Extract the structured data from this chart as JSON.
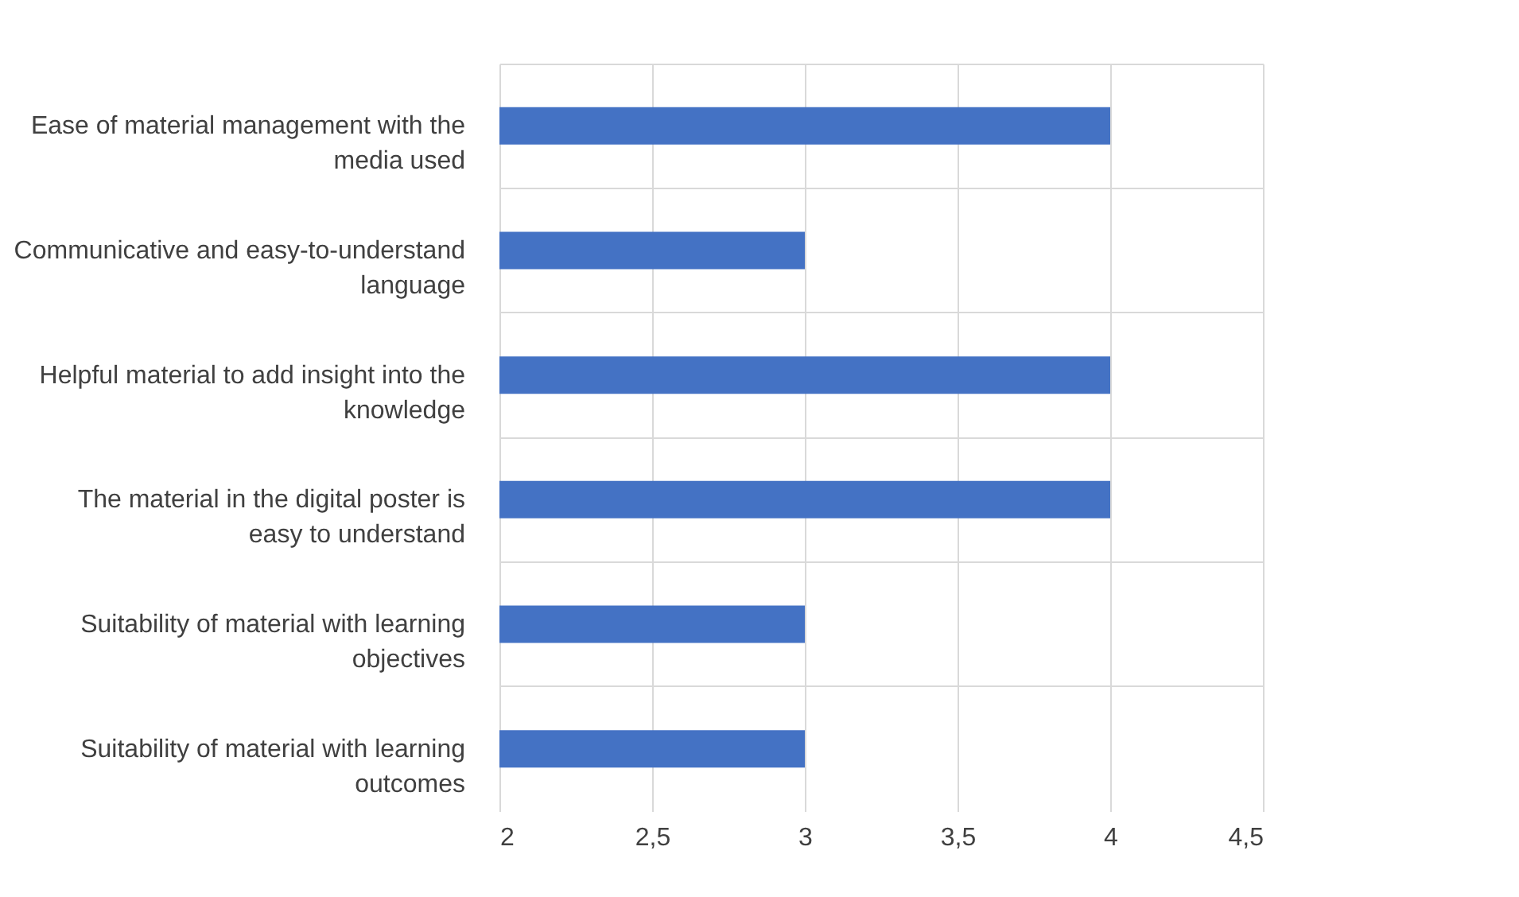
{
  "chart_data": {
    "type": "bar",
    "orientation": "horizontal",
    "categories": [
      "Ease of material management with the media used",
      "Communicative and easy-to-understand language",
      "Helpful material to add insight into the knowledge",
      "The material in the digital poster is easy to understand",
      "Suitability of material with learning objectives",
      "Suitability of material with learning outcomes"
    ],
    "values": [
      4,
      3,
      4,
      4,
      3,
      3
    ],
    "color": "#4472c4",
    "xlim": [
      2,
      4.5
    ],
    "xticks": [
      2,
      {
        "value": 2.5,
        "label": "2,5"
      },
      3,
      {
        "value": 3.5,
        "label": "3,5"
      },
      4,
      {
        "value": 4.5,
        "label": "4,5"
      }
    ],
    "grid": true
  }
}
